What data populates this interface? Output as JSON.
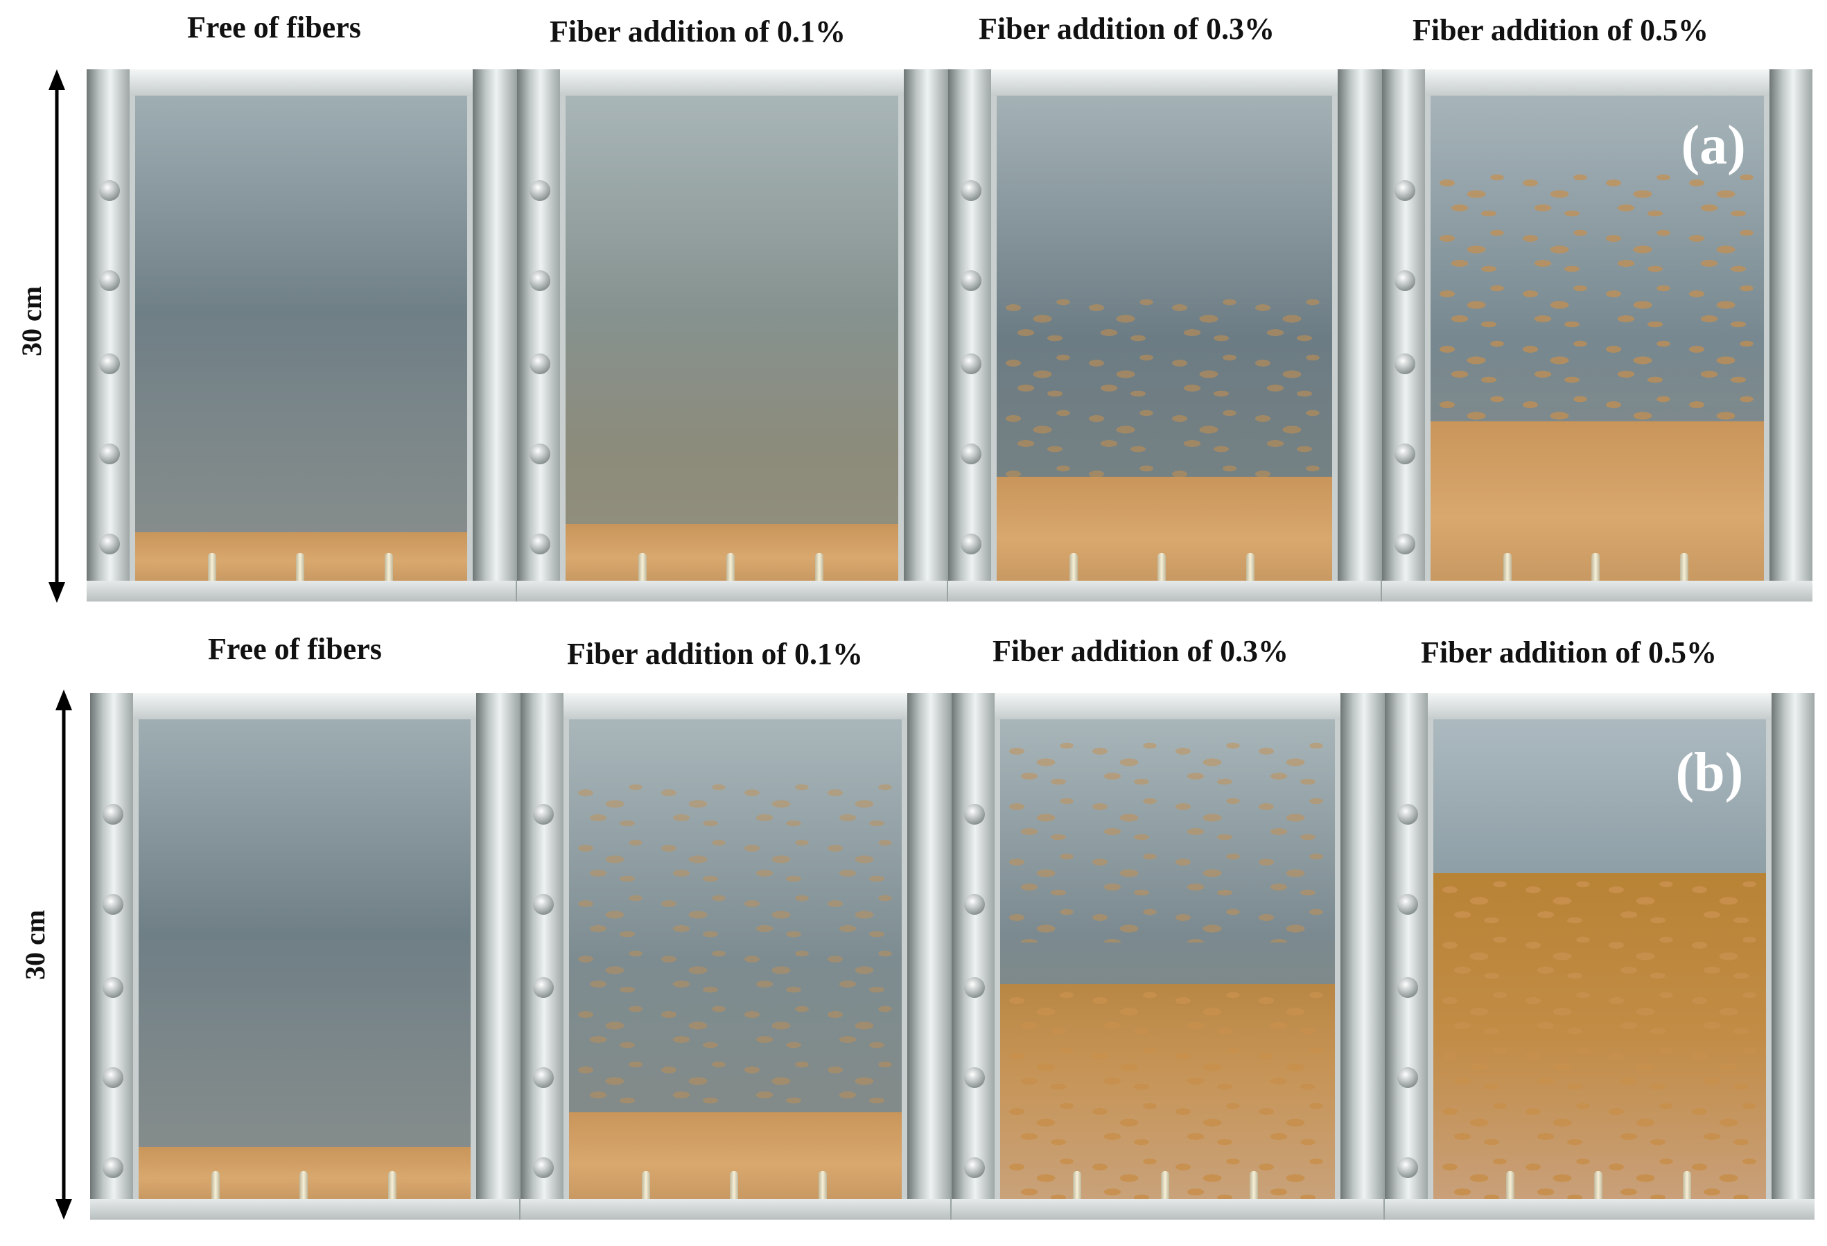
{
  "dimension_label": "30 cm",
  "rows": [
    {
      "letter": "(a)",
      "captions": [
        "Free of fibers",
        "Fiber addition of 0.1%",
        "Fiber addition of 0.3%",
        "Fiber addition of 0.5%"
      ]
    },
    {
      "letter": "(b)",
      "captions": [
        "Free of fibers",
        "Fiber addition of 0.1%",
        "Fiber addition of 0.3%",
        "Fiber addition of 0.5%"
      ]
    }
  ]
}
